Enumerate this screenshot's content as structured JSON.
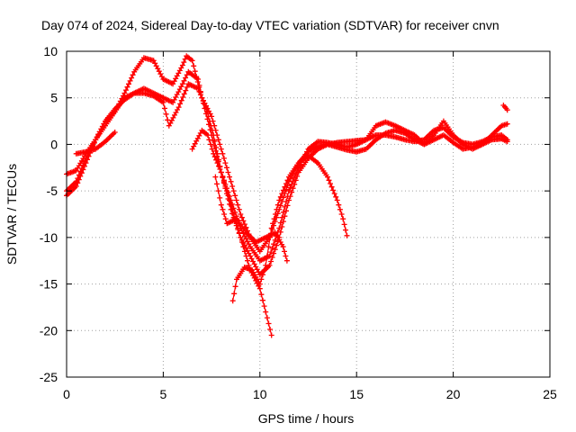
{
  "chart_data": {
    "type": "scatter",
    "title": "Day 074 of 2024, Sidereal Day-to-day VTEC variation (SDTVAR) for receiver cnvn",
    "xlabel": "GPS time / hours",
    "ylabel": "SDTVAR / TECUs",
    "xlim": [
      0,
      25
    ],
    "ylim": [
      -25,
      10
    ],
    "xticks": [
      0,
      5,
      10,
      15,
      20,
      25
    ],
    "yticks": [
      -25,
      -20,
      -15,
      -10,
      -5,
      0,
      5,
      10
    ],
    "xtick_labels": [
      "0",
      "5",
      "10",
      "15",
      "20",
      "25"
    ],
    "ytick_labels": [
      "-25",
      "-20",
      "-15",
      "-10",
      "-5",
      "0",
      "5",
      "10"
    ],
    "grid": true,
    "marker": "+",
    "color": "#ff0000",
    "series": [
      {
        "name": "arc-1",
        "points": [
          [
            0.0,
            -3.2
          ],
          [
            0.5,
            -2.8
          ],
          [
            1.0,
            -1.0
          ],
          [
            1.5,
            0.5
          ],
          [
            2.0,
            2.5
          ],
          [
            2.5,
            3.5
          ],
          [
            3.0,
            5.5
          ],
          [
            3.5,
            7.8
          ],
          [
            4.0,
            9.3
          ],
          [
            4.5,
            9.0
          ],
          [
            5.0,
            7.0
          ],
          [
            5.5,
            6.5
          ],
          [
            6.0,
            8.5
          ],
          [
            6.2,
            9.5
          ],
          [
            6.5,
            9.0
          ],
          [
            7.0,
            5.0
          ],
          [
            7.5,
            1.0
          ],
          [
            8.0,
            -3.0
          ],
          [
            8.5,
            -6.0
          ],
          [
            9.0,
            -9.0
          ],
          [
            9.5,
            -11.0
          ],
          [
            10.0,
            -12.5
          ],
          [
            10.5,
            -12.0
          ],
          [
            11.0,
            -9.0
          ],
          [
            11.5,
            -5.0
          ],
          [
            12.0,
            -2.5
          ],
          [
            12.5,
            -0.5
          ],
          [
            13.0,
            0.3
          ],
          [
            13.5,
            0.2
          ],
          [
            14.0,
            0.0
          ],
          [
            14.5,
            -0.3
          ],
          [
            15.0,
            0.0
          ],
          [
            15.5,
            0.5
          ],
          [
            16.0,
            2.0
          ],
          [
            16.5,
            2.4
          ],
          [
            17.0,
            2.0
          ],
          [
            17.5,
            1.5
          ],
          [
            18.0,
            1.0
          ],
          [
            18.5,
            0.0
          ],
          [
            19.0,
            1.0
          ],
          [
            19.5,
            2.5
          ],
          [
            20.0,
            1.0
          ],
          [
            20.5,
            0.0
          ],
          [
            21.0,
            -0.5
          ],
          [
            21.5,
            0.0
          ],
          [
            22.0,
            1.0
          ],
          [
            22.5,
            2.0
          ],
          [
            22.8,
            2.2
          ]
        ]
      },
      {
        "name": "arc-2",
        "points": [
          [
            0.0,
            -5.5
          ],
          [
            0.5,
            -4.5
          ],
          [
            1.0,
            -2.0
          ],
          [
            1.5,
            0.5
          ],
          [
            2.0,
            2.5
          ],
          [
            2.5,
            3.8
          ],
          [
            3.0,
            4.8
          ],
          [
            3.5,
            5.5
          ],
          [
            4.0,
            6.0
          ],
          [
            4.5,
            5.5
          ],
          [
            5.0,
            5.0
          ],
          [
            5.5,
            4.5
          ],
          [
            6.0,
            6.5
          ],
          [
            6.3,
            7.8
          ],
          [
            6.8,
            7.0
          ],
          [
            7.0,
            5.0
          ],
          [
            7.5,
            3.0
          ],
          [
            8.0,
            -0.5
          ],
          [
            8.5,
            -4.0
          ],
          [
            9.0,
            -7.5
          ],
          [
            9.5,
            -10.0
          ],
          [
            10.0,
            -11.5
          ],
          [
            10.5,
            -10.0
          ],
          [
            11.0,
            -7.0
          ],
          [
            11.5,
            -4.0
          ],
          [
            12.0,
            -2.0
          ],
          [
            12.5,
            -0.8
          ],
          [
            13.0,
            -0.2
          ],
          [
            13.5,
            0.0
          ],
          [
            14.0,
            -0.3
          ],
          [
            14.5,
            -0.6
          ],
          [
            15.0,
            -0.8
          ],
          [
            15.5,
            -0.5
          ],
          [
            16.0,
            0.5
          ],
          [
            16.5,
            1.2
          ],
          [
            17.0,
            1.5
          ],
          [
            17.5,
            1.2
          ],
          [
            18.0,
            0.5
          ],
          [
            18.5,
            0.0
          ],
          [
            19.0,
            0.5
          ],
          [
            19.5,
            1.0
          ],
          [
            20.0,
            0.2
          ],
          [
            20.5,
            -0.5
          ],
          [
            21.0,
            -0.3
          ],
          [
            21.5,
            0.0
          ],
          [
            22.0,
            0.5
          ],
          [
            22.5,
            0.6
          ],
          [
            22.8,
            0.3
          ]
        ]
      },
      {
        "name": "arc-3",
        "points": [
          [
            0.0,
            -5.0
          ],
          [
            0.5,
            -4.0
          ],
          [
            1.0,
            -1.5
          ],
          [
            1.5,
            0.5
          ],
          [
            2.0,
            2.0
          ],
          [
            2.5,
            3.5
          ],
          [
            3.0,
            5.0
          ],
          [
            3.5,
            5.5
          ],
          [
            4.0,
            5.5
          ],
          [
            4.5,
            5.2
          ],
          [
            5.0,
            4.5
          ],
          [
            5.3,
            2.0
          ],
          [
            5.8,
            4.0
          ],
          [
            6.3,
            6.5
          ],
          [
            6.8,
            6.0
          ],
          [
            7.2,
            4.0
          ],
          [
            7.6,
            1.0
          ],
          [
            8.0,
            -3.0
          ],
          [
            8.5,
            -7.0
          ],
          [
            9.0,
            -10.0
          ],
          [
            9.5,
            -12.0
          ],
          [
            10.0,
            -14.0
          ],
          [
            10.5,
            -13.0
          ],
          [
            11.0,
            -10.0
          ],
          [
            11.5,
            -6.0
          ],
          [
            12.0,
            -3.0
          ],
          [
            12.5,
            -1.5
          ],
          [
            13.0,
            -0.5
          ],
          [
            13.5,
            0.0
          ],
          [
            14.0,
            0.2
          ],
          [
            14.5,
            0.3
          ],
          [
            15.0,
            0.4
          ],
          [
            15.5,
            0.5
          ],
          [
            16.0,
            1.0
          ],
          [
            16.5,
            1.0
          ],
          [
            17.0,
            0.8
          ],
          [
            17.5,
            0.5
          ],
          [
            18.0,
            0.3
          ],
          [
            18.5,
            0.5
          ],
          [
            19.0,
            1.5
          ],
          [
            19.5,
            1.8
          ],
          [
            20.0,
            0.8
          ],
          [
            20.5,
            0.2
          ],
          [
            21.0,
            0.0
          ],
          [
            21.5,
            0.3
          ],
          [
            22.0,
            0.8
          ],
          [
            22.5,
            1.0
          ],
          [
            22.8,
            0.5
          ]
        ]
      },
      {
        "name": "arc-4",
        "points": [
          [
            6.5,
            -0.5
          ],
          [
            7.0,
            1.5
          ],
          [
            7.3,
            1.0
          ],
          [
            7.6,
            -1.0
          ],
          [
            8.0,
            -3.0
          ],
          [
            8.5,
            -6.5
          ],
          [
            9.0,
            -10.0
          ],
          [
            9.5,
            -13.5
          ],
          [
            10.0,
            -15.5
          ],
          [
            10.3,
            -18.0
          ],
          [
            10.6,
            -20.5
          ]
        ]
      },
      {
        "name": "arc-5",
        "points": [
          [
            7.7,
            -3.5
          ],
          [
            8.0,
            -6.5
          ],
          [
            8.3,
            -8.5
          ],
          [
            8.8,
            -8.0
          ],
          [
            9.3,
            -9.5
          ],
          [
            9.8,
            -10.5
          ],
          [
            10.3,
            -10.0
          ],
          [
            10.8,
            -9.5
          ],
          [
            11.2,
            -11.0
          ],
          [
            11.4,
            -12.5
          ]
        ]
      },
      {
        "name": "arc-6",
        "points": [
          [
            8.6,
            -16.8
          ],
          [
            8.8,
            -14.5
          ],
          [
            9.2,
            -13.2
          ],
          [
            9.6,
            -13.5
          ],
          [
            10.0,
            -15.0
          ],
          [
            10.3,
            -13.0
          ],
          [
            10.6,
            -9.0
          ],
          [
            11.0,
            -6.0
          ],
          [
            11.5,
            -3.5
          ],
          [
            12.0,
            -2.0
          ],
          [
            12.5,
            -1.2
          ],
          [
            13.0,
            -2.0
          ],
          [
            13.5,
            -3.5
          ],
          [
            14.0,
            -6.0
          ],
          [
            14.3,
            -8.0
          ],
          [
            14.5,
            -9.8
          ]
        ]
      },
      {
        "name": "arc-7",
        "points": [
          [
            0.5,
            -1.0
          ],
          [
            1.0,
            -0.8
          ],
          [
            1.5,
            -0.5
          ],
          [
            2.0,
            0.3
          ],
          [
            2.5,
            1.3
          ]
        ]
      },
      {
        "name": "arc-8",
        "points": [
          [
            22.6,
            4.2
          ],
          [
            22.8,
            3.7
          ]
        ]
      }
    ]
  }
}
